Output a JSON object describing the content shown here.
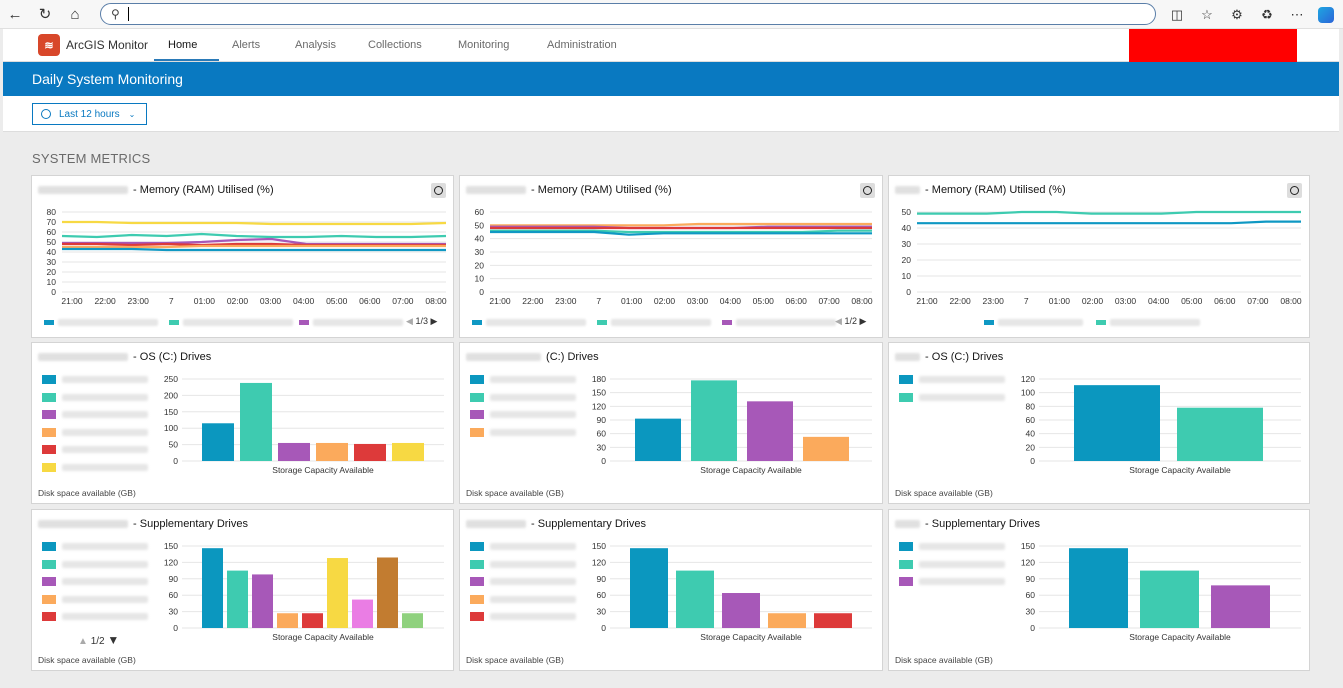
{
  "browser": {
    "back_icon": "arrow-left-icon",
    "refresh_icon": "refresh-icon",
    "home_icon": "home-icon",
    "address_value": ""
  },
  "app": {
    "name": "ArcGIS Monitor",
    "nav": [
      "Home",
      "Alerts",
      "Analysis",
      "Collections",
      "Monitoring",
      "Administration"
    ],
    "active_nav": "Home"
  },
  "dashboard": {
    "title": "Daily System Monitoring",
    "time_filter": "Last 12 hours",
    "section_title": "SYSTEM METRICS"
  },
  "line_x_ticks": [
    "21:00",
    "22:00",
    "23:00",
    "7",
    "01:00",
    "02:00",
    "03:00",
    "04:00",
    "05:00",
    "06:00",
    "07:00",
    "08:00"
  ],
  "cards": {
    "mem1": {
      "title": " - Memory (RAM) Utilised (%)",
      "pager": "1/3"
    },
    "mem2": {
      "title": " - Memory (RAM) Utilised (%)",
      "pager": "1/2"
    },
    "mem3": {
      "title": " - Memory (RAM) Utilised (%)"
    },
    "os1": {
      "title": " - OS (C:) Drives",
      "xlabel": "Storage Capacity Available",
      "footer": "Disk space available (GB)"
    },
    "os2": {
      "title": " (C:) Drives",
      "xlabel": "Storage Capacity Available",
      "footer": "Disk space available (GB)"
    },
    "os3": {
      "title": " - OS (C:) Drives",
      "xlabel": "Storage Capacity Available",
      "footer": "Disk space available (GB)"
    },
    "sup1": {
      "title": " - Supplementary Drives",
      "xlabel": "Storage Capacity Available",
      "footer": "Disk space available (GB)",
      "pager": "1/2"
    },
    "sup2": {
      "title": " - Supplementary Drives",
      "xlabel": "Storage Capacity Available",
      "footer": "Disk space available (GB)"
    },
    "sup3": {
      "title": " - Supplementary Drives",
      "xlabel": "Storage Capacity Available",
      "footer": "Disk space available (GB)"
    }
  },
  "chart_data": [
    {
      "id": "mem1",
      "type": "line",
      "x": [
        "21:00",
        "22:00",
        "23:00",
        "7",
        "01:00",
        "02:00",
        "03:00",
        "04:00",
        "05:00",
        "06:00",
        "07:00",
        "08:00"
      ],
      "ylim": [
        0,
        80
      ],
      "yticks": [
        0,
        10,
        20,
        30,
        40,
        50,
        60,
        70,
        80
      ],
      "series": [
        {
          "color": "#f7d943",
          "values": [
            70,
            70,
            69,
            69,
            69,
            69,
            68,
            68,
            68,
            68,
            68,
            69
          ]
        },
        {
          "color": "#3ecbb0",
          "values": [
            56,
            55,
            57,
            56,
            58,
            56,
            55,
            55,
            56,
            55,
            55,
            56
          ]
        },
        {
          "color": "#a758b8",
          "values": [
            49,
            49,
            49,
            49,
            50,
            52,
            53,
            48,
            48,
            48,
            48,
            48
          ]
        },
        {
          "color": "#dd3a3a",
          "values": [
            48,
            48,
            47,
            48,
            47,
            48,
            48,
            47,
            47,
            47,
            47,
            47
          ]
        },
        {
          "color": "#fbaa5c",
          "values": [
            45,
            45,
            45,
            45,
            46,
            46,
            46,
            46,
            46,
            46,
            46,
            46
          ]
        },
        {
          "color": "#0f98c3",
          "values": [
            43,
            43,
            43,
            42,
            42,
            42,
            42,
            42,
            42,
            42,
            42,
            42
          ]
        }
      ]
    },
    {
      "id": "mem2",
      "type": "line",
      "x": [
        "21:00",
        "22:00",
        "23:00",
        "7",
        "01:00",
        "02:00",
        "03:00",
        "04:00",
        "05:00",
        "06:00",
        "07:00",
        "08:00"
      ],
      "ylim": [
        0,
        60
      ],
      "yticks": [
        0,
        10,
        20,
        30,
        40,
        50,
        60
      ],
      "series": [
        {
          "color": "#fbaa5c",
          "values": [
            50,
            50,
            50,
            50,
            50,
            50,
            51,
            51,
            51,
            51,
            51,
            51
          ]
        },
        {
          "color": "#a758b8",
          "values": [
            49,
            49,
            49,
            49,
            48,
            48,
            48,
            48,
            49,
            49,
            49,
            49
          ]
        },
        {
          "color": "#dd3a3a",
          "values": [
            48,
            48,
            48,
            48,
            48,
            48,
            48,
            48,
            48,
            48,
            48,
            48
          ]
        },
        {
          "color": "#3ecbb0",
          "values": [
            46,
            46,
            46,
            46,
            45,
            45,
            45,
            45,
            45,
            45,
            46,
            46
          ]
        },
        {
          "color": "#0f98c3",
          "values": [
            45,
            45,
            45,
            45,
            43,
            44,
            44,
            44,
            44,
            44,
            44,
            44
          ]
        }
      ]
    },
    {
      "id": "mem3",
      "type": "line",
      "x": [
        "21:00",
        "22:00",
        "23:00",
        "7",
        "01:00",
        "02:00",
        "03:00",
        "04:00",
        "05:00",
        "06:00",
        "07:00",
        "08:00"
      ],
      "ylim": [
        0,
        50
      ],
      "yticks": [
        0,
        10,
        20,
        30,
        40,
        50
      ],
      "series": [
        {
          "color": "#3ecbb0",
          "values": [
            49,
            49,
            49,
            50,
            50,
            49,
            49,
            49,
            50,
            50,
            50,
            50
          ]
        },
        {
          "color": "#0f98c3",
          "values": [
            43,
            43,
            43,
            43,
            43,
            43,
            43,
            43,
            43,
            43,
            44,
            44
          ]
        }
      ]
    },
    {
      "id": "os1",
      "type": "bar",
      "xlabel": "Storage Capacity Available",
      "ylim": [
        0,
        250
      ],
      "yticks": [
        0,
        50,
        100,
        150,
        200,
        250
      ],
      "bars": [
        {
          "color": "#0b97bf",
          "value": 115
        },
        {
          "color": "#3ecbb0",
          "value": 238
        },
        {
          "color": "#a758b8",
          "value": 55
        },
        {
          "color": "#fbaa5c",
          "value": 55
        },
        {
          "color": "#dd3a3a",
          "value": 52
        },
        {
          "color": "#f7d943",
          "value": 55
        }
      ]
    },
    {
      "id": "os2",
      "type": "bar",
      "xlabel": "Storage Capacity Available",
      "ylim": [
        0,
        180
      ],
      "yticks": [
        0,
        30,
        60,
        90,
        120,
        150,
        180
      ],
      "bars": [
        {
          "color": "#0b97bf",
          "value": 93
        },
        {
          "color": "#3ecbb0",
          "value": 177
        },
        {
          "color": "#a758b8",
          "value": 131
        },
        {
          "color": "#fbaa5c",
          "value": 53
        }
      ]
    },
    {
      "id": "os3",
      "type": "bar",
      "xlabel": "Storage Capacity Available",
      "ylim": [
        0,
        120
      ],
      "yticks": [
        0,
        20,
        40,
        60,
        80,
        100,
        120
      ],
      "bars": [
        {
          "color": "#0b97bf",
          "value": 111
        },
        {
          "color": "#3ecbb0",
          "value": 78
        }
      ]
    },
    {
      "id": "sup1",
      "type": "bar",
      "xlabel": "Storage Capacity Available",
      "ylim": [
        0,
        150
      ],
      "yticks": [
        0,
        30,
        60,
        90,
        120,
        150
      ],
      "bars": [
        {
          "color": "#0b97bf",
          "value": 146
        },
        {
          "color": "#3ecbb0",
          "value": 105
        },
        {
          "color": "#a758b8",
          "value": 98
        },
        {
          "color": "#fbaa5c",
          "value": 27
        },
        {
          "color": "#dd3a3a",
          "value": 27
        },
        {
          "color": "#f7d943",
          "value": 128
        },
        {
          "color": "#ea7de4",
          "value": 52
        },
        {
          "color": "#c27c30",
          "value": 129
        },
        {
          "color": "#8fd17e",
          "value": 27
        }
      ]
    },
    {
      "id": "sup2",
      "type": "bar",
      "xlabel": "Storage Capacity Available",
      "ylim": [
        0,
        150
      ],
      "yticks": [
        0,
        30,
        60,
        90,
        120,
        150
      ],
      "bars": [
        {
          "color": "#0b97bf",
          "value": 146
        },
        {
          "color": "#3ecbb0",
          "value": 105
        },
        {
          "color": "#a758b8",
          "value": 64
        },
        {
          "color": "#fbaa5c",
          "value": 27
        },
        {
          "color": "#dd3a3a",
          "value": 27
        }
      ]
    },
    {
      "id": "sup3",
      "type": "bar",
      "xlabel": "Storage Capacity Available",
      "ylim": [
        0,
        150
      ],
      "yticks": [
        0,
        30,
        60,
        90,
        120,
        150
      ],
      "bars": [
        {
          "color": "#0b97bf",
          "value": 146
        },
        {
          "color": "#3ecbb0",
          "value": 105
        },
        {
          "color": "#a758b8",
          "value": 78
        }
      ]
    }
  ]
}
